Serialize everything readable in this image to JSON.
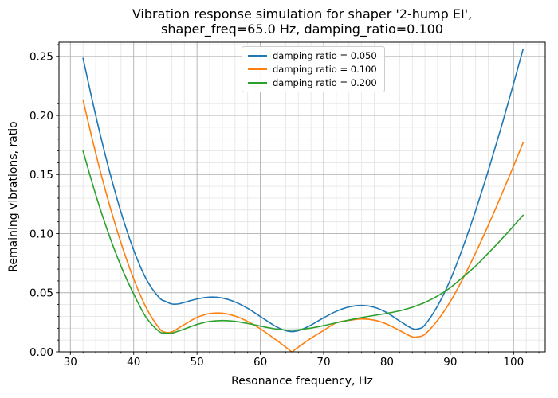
{
  "title": {
    "line1": "Vibration response simulation for shaper '2-hump EI',",
    "line2": "shaper_freq=65.0 Hz, damping_ratio=0.100"
  },
  "axes": {
    "xlabel": "Resonance frequency, Hz",
    "ylabel": "Remaining vibrations, ratio",
    "xlim": [
      28.2,
      105.0
    ],
    "ylim": [
      0,
      0.262
    ],
    "xticks": [
      30,
      40,
      50,
      60,
      70,
      80,
      90,
      100
    ],
    "xtick_labels": [
      "30",
      "40",
      "50",
      "60",
      "70",
      "80",
      "90",
      "100"
    ],
    "yticks": [
      0,
      0.05,
      0.1,
      0.15,
      0.2,
      0.25
    ],
    "ytick_labels": [
      "0.00",
      "0.05",
      "0.10",
      "0.15",
      "0.20",
      "0.25"
    ],
    "x_minor_step": 2,
    "y_minor_step": 0.01,
    "grid": "major+minor"
  },
  "legend": {
    "position": "upper center",
    "entries": [
      {
        "label": "damping ratio = 0.050",
        "color": "#1f77b4"
      },
      {
        "label": "damping ratio = 0.100",
        "color": "#ff7f0e"
      },
      {
        "label": "damping ratio = 0.200",
        "color": "#2ca02c"
      }
    ]
  },
  "chart_data": {
    "type": "line",
    "title": "Vibration response simulation for shaper '2-hump EI', shaper_freq=65.0 Hz, damping_ratio=0.100",
    "xlabel": "Resonance frequency, Hz",
    "ylabel": "Remaining vibrations, ratio",
    "xlim": [
      28.2,
      105.0
    ],
    "ylim": [
      0,
      0.262
    ],
    "grid": "major+minor",
    "legend_position": "upper center",
    "x": [
      32,
      34,
      36,
      38,
      40,
      42,
      44,
      45,
      46,
      47,
      48,
      50,
      52,
      54,
      56,
      58,
      60,
      62,
      63,
      64,
      64.5,
      65,
      65.5,
      66,
      67,
      68,
      70,
      72,
      74,
      76,
      78,
      80,
      82,
      84,
      85,
      86,
      88,
      90,
      92,
      94,
      96,
      98,
      100,
      101.5
    ],
    "series": [
      {
        "name": "damping ratio = 0.050",
        "color": "#1f77b4",
        "values": [
          0.2484,
          0.2001,
          0.1564,
          0.1181,
          0.0861,
          0.0614,
          0.046,
          0.0427,
          0.0405,
          0.0405,
          0.0418,
          0.0447,
          0.0463,
          0.0455,
          0.0422,
          0.0368,
          0.0299,
          0.0229,
          0.02,
          0.0179,
          0.0174,
          0.0171,
          0.0174,
          0.0179,
          0.02,
          0.0226,
          0.0288,
          0.0343,
          0.038,
          0.0393,
          0.0377,
          0.0331,
          0.0261,
          0.0197,
          0.0195,
          0.0228,
          0.0389,
          0.0609,
          0.0885,
          0.1195,
          0.1532,
          0.1892,
          0.227,
          0.2561
        ]
      },
      {
        "name": "damping ratio = 0.100",
        "color": "#ff7f0e",
        "values": [
          0.213,
          0.1681,
          0.1277,
          0.0921,
          0.0617,
          0.0371,
          0.0202,
          0.0165,
          0.0168,
          0.0198,
          0.0231,
          0.0291,
          0.0324,
          0.0327,
          0.0303,
          0.0257,
          0.0195,
          0.012,
          0.0081,
          0.004,
          0.002,
          0.0,
          0.002,
          0.004,
          0.0078,
          0.0115,
          0.0181,
          0.0246,
          0.0266,
          0.0278,
          0.0268,
          0.0234,
          0.018,
          0.0127,
          0.0128,
          0.0149,
          0.0267,
          0.0425,
          0.062,
          0.0837,
          0.107,
          0.1317,
          0.1573,
          0.1769
        ]
      },
      {
        "name": "damping ratio = 0.200",
        "color": "#2ca02c",
        "values": [
          0.17,
          0.133,
          0.1005,
          0.0724,
          0.0489,
          0.0289,
          0.0173,
          0.016,
          0.0158,
          0.0174,
          0.0193,
          0.0232,
          0.0257,
          0.0265,
          0.0258,
          0.024,
          0.0218,
          0.0197,
          0.019,
          0.0185,
          0.0184,
          0.0184,
          0.0185,
          0.0187,
          0.0194,
          0.0201,
          0.0222,
          0.0246,
          0.0269,
          0.029,
          0.0308,
          0.0326,
          0.0347,
          0.0377,
          0.0397,
          0.0418,
          0.0473,
          0.0543,
          0.0632,
          0.0726,
          0.0835,
          0.0947,
          0.1065,
          0.1156
        ]
      }
    ]
  }
}
